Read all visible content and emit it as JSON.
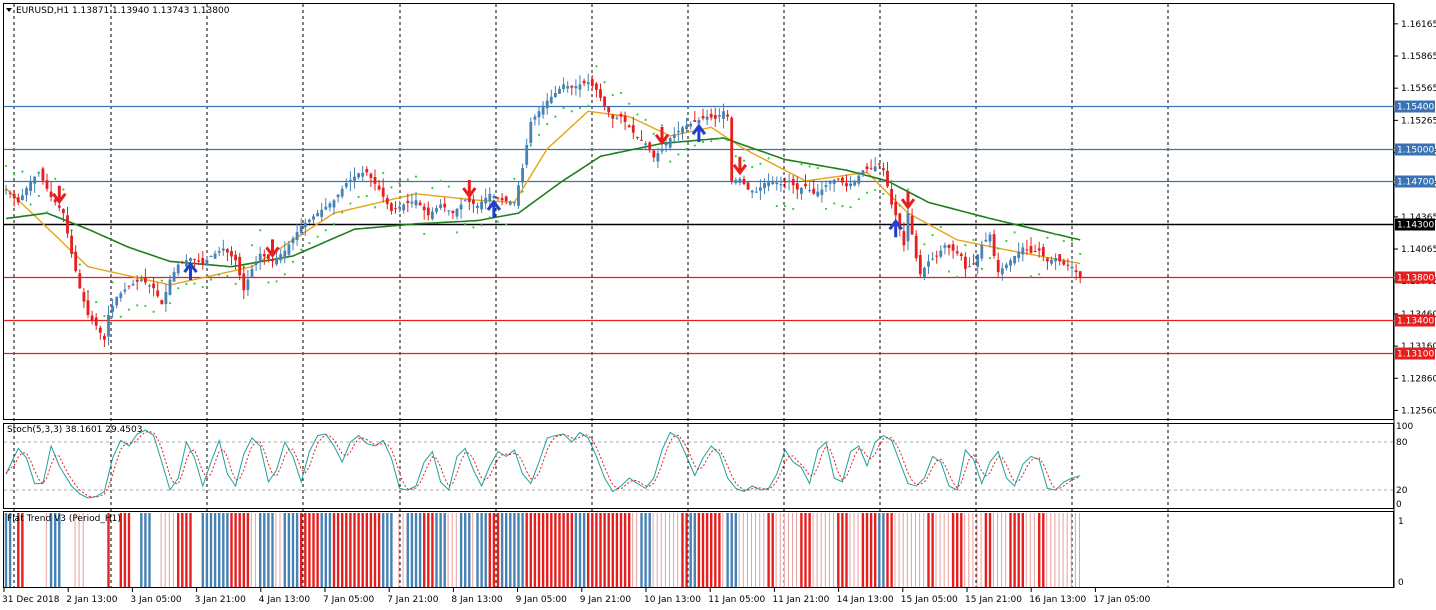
{
  "main": {
    "header": "EURUSD,H1  1.13871 1.13940 1.13743 1.13800",
    "price_ticks": [
      "1.16165",
      "1.15865",
      "1.15565",
      "1.15265",
      "1.14965",
      "1.14665",
      "1.14365",
      "1.14065",
      "1.13765",
      "1.13460",
      "1.13160",
      "1.12860",
      "1.12560"
    ],
    "levels": [
      {
        "value": 1.154,
        "label": "1.15400",
        "color": "#3a73b5"
      },
      {
        "value": 1.15,
        "label": "1.15000",
        "color": "#3a73b5"
      },
      {
        "value": 1.147,
        "label": "1.14700",
        "color": "#3a73b5"
      },
      {
        "value": 1.143,
        "label": "1.14300",
        "color": "#000000"
      },
      {
        "value": 1.138,
        "label": "1.13800",
        "color": "#e61e1e"
      },
      {
        "value": 1.134,
        "label": "1.13400",
        "color": "#e61e1e"
      },
      {
        "value": 1.131,
        "label": "1.13100",
        "color": "#e61e1e"
      }
    ]
  },
  "stoch": {
    "header": "Stoch(5,3,3) 38.1601 29.4503",
    "ticks": [
      "100",
      "80",
      "20",
      "0"
    ]
  },
  "trend": {
    "header": "Flat Trend V3 (Period_H1)",
    "ticks": [
      "1",
      "0"
    ]
  },
  "time_labels": [
    "31 Dec 2018",
    "2 Jan 13:00",
    "3 Jan 05:00",
    "3 Jan 21:00",
    "4 Jan 13:00",
    "7 Jan 05:00",
    "7 Jan 21:00",
    "8 Jan 13:00",
    "9 Jan 05:00",
    "9 Jan 21:00",
    "10 Jan 13:00",
    "11 Jan 05:00",
    "11 Jan 21:00",
    "14 Jan 13:00",
    "15 Jan 05:00",
    "15 Jan 21:00",
    "16 Jan 13:00",
    "17 Jan 05:00"
  ],
  "colors": {
    "bull": "#4682b4",
    "bear": "#e61e1e",
    "ma_fast": "#e8a317",
    "ma_slow": "#1e7d1e",
    "sar": "#33cc33",
    "stoch_main": "#20a0a0",
    "stoch_signal": "#e61e1e"
  },
  "chart_data": {
    "type": "candlestick",
    "title": "EURUSD,H1",
    "ylim": [
      1.1248,
      1.1635
    ],
    "close_path": [
      [
        0,
        1.1462
      ],
      [
        3,
        1.145
      ],
      [
        6,
        1.147
      ],
      [
        8,
        1.1478
      ],
      [
        11,
        1.1455
      ],
      [
        14,
        1.144
      ],
      [
        16,
        1.1402
      ],
      [
        18,
        1.137
      ],
      [
        20,
        1.1345
      ],
      [
        22,
        1.1335
      ],
      [
        24,
        1.1322
      ],
      [
        25,
        1.1345
      ],
      [
        27,
        1.1362
      ],
      [
        30,
        1.1372
      ],
      [
        33,
        1.1378
      ],
      [
        36,
        1.137
      ],
      [
        38,
        1.1355
      ],
      [
        40,
        1.1378
      ],
      [
        42,
        1.1392
      ],
      [
        45,
        1.1398
      ],
      [
        48,
        1.1393
      ],
      [
        50,
        1.14
      ],
      [
        53,
        1.1407
      ],
      [
        56,
        1.1396
      ],
      [
        58,
        1.1368
      ],
      [
        60,
        1.1388
      ],
      [
        62,
        1.1402
      ],
      [
        65,
        1.1395
      ],
      [
        68,
        1.1405
      ],
      [
        72,
        1.1428
      ],
      [
        76,
        1.144
      ],
      [
        80,
        1.1452
      ],
      [
        83,
        1.1468
      ],
      [
        86,
        1.1477
      ],
      [
        88,
        1.1478
      ],
      [
        91,
        1.1462
      ],
      [
        94,
        1.1442
      ],
      [
        97,
        1.1448
      ],
      [
        100,
        1.1452
      ],
      [
        103,
        1.1438
      ],
      [
        106,
        1.1448
      ],
      [
        109,
        1.144
      ],
      [
        112,
        1.1452
      ],
      [
        115,
        1.1447
      ],
      [
        118,
        1.1458
      ],
      [
        121,
        1.1452
      ],
      [
        124,
        1.145
      ],
      [
        126,
        1.1482
      ],
      [
        128,
        1.1525
      ],
      [
        130,
        1.1535
      ],
      [
        132,
        1.1545
      ],
      [
        134,
        1.1552
      ],
      [
        136,
        1.156
      ],
      [
        138,
        1.1557
      ],
      [
        140,
        1.156
      ],
      [
        142,
        1.1562
      ],
      [
        144,
        1.1555
      ],
      [
        146,
        1.154
      ],
      [
        148,
        1.1528
      ],
      [
        150,
        1.153
      ],
      [
        152,
        1.152
      ],
      [
        154,
        1.151
      ],
      [
        156,
        1.1505
      ],
      [
        158,
        1.1492
      ],
      [
        160,
        1.15
      ],
      [
        162,
        1.151
      ],
      [
        165,
        1.152
      ],
      [
        168,
        1.1525
      ],
      [
        171,
        1.153
      ],
      [
        173,
        1.1528
      ],
      [
        175,
        1.1535
      ],
      [
        176,
        1.153
      ],
      [
        177,
        1.147
      ],
      [
        179,
        1.1472
      ],
      [
        181,
        1.1462
      ],
      [
        183,
        1.146
      ],
      [
        185,
        1.1468
      ],
      [
        187,
        1.147
      ],
      [
        189,
        1.1467
      ],
      [
        191,
        1.147
      ],
      [
        193,
        1.1462
      ],
      [
        195,
        1.1465
      ],
      [
        197,
        1.1458
      ],
      [
        199,
        1.1462
      ],
      [
        201,
        1.147
      ],
      [
        203,
        1.1472
      ],
      [
        205,
        1.1465
      ],
      [
        207,
        1.147
      ],
      [
        209,
        1.148
      ],
      [
        211,
        1.1482
      ],
      [
        213,
        1.1485
      ],
      [
        214,
        1.148
      ],
      [
        215,
        1.1465
      ],
      [
        216,
        1.1448
      ],
      [
        217,
        1.1438
      ],
      [
        218,
        1.1425
      ],
      [
        219,
        1.141
      ],
      [
        220,
        1.144
      ],
      [
        221,
        1.142
      ],
      [
        222,
        1.1398
      ],
      [
        223,
        1.1383
      ],
      [
        225,
        1.1395
      ],
      [
        227,
        1.14
      ],
      [
        229,
        1.141
      ],
      [
        231,
        1.1405
      ],
      [
        233,
        1.14
      ],
      [
        234,
        1.1388
      ],
      [
        236,
        1.1393
      ],
      [
        238,
        1.141
      ],
      [
        240,
        1.142
      ],
      [
        241,
        1.14
      ],
      [
        242,
        1.1385
      ],
      [
        244,
        1.1392
      ],
      [
        246,
        1.14
      ],
      [
        248,
        1.1408
      ],
      [
        250,
        1.1403
      ],
      [
        252,
        1.1405
      ],
      [
        254,
        1.1395
      ],
      [
        256,
        1.1398
      ],
      [
        258,
        1.1392
      ],
      [
        260,
        1.139
      ],
      [
        261,
        1.1385
      ],
      [
        262,
        1.138
      ]
    ],
    "ma_fast": [
      [
        0,
        1.1463
      ],
      [
        20,
        1.139
      ],
      [
        40,
        1.1373
      ],
      [
        60,
        1.139
      ],
      [
        80,
        1.144
      ],
      [
        100,
        1.1458
      ],
      [
        115,
        1.1452
      ],
      [
        124,
        1.145
      ],
      [
        132,
        1.15
      ],
      [
        142,
        1.1535
      ],
      [
        152,
        1.153
      ],
      [
        162,
        1.1512
      ],
      [
        172,
        1.152
      ],
      [
        180,
        1.15
      ],
      [
        195,
        1.147
      ],
      [
        210,
        1.1478
      ],
      [
        220,
        1.144
      ],
      [
        232,
        1.1415
      ],
      [
        245,
        1.1405
      ],
      [
        262,
        1.1393
      ]
    ],
    "ma_slow": [
      [
        0,
        1.1435
      ],
      [
        10,
        1.144
      ],
      [
        20,
        1.1425
      ],
      [
        30,
        1.1408
      ],
      [
        40,
        1.1395
      ],
      [
        55,
        1.139
      ],
      [
        70,
        1.14
      ],
      [
        85,
        1.1425
      ],
      [
        100,
        1.143
      ],
      [
        115,
        1.1433
      ],
      [
        125,
        1.144
      ],
      [
        135,
        1.1468
      ],
      [
        145,
        1.1493
      ],
      [
        160,
        1.1505
      ],
      [
        175,
        1.151
      ],
      [
        190,
        1.149
      ],
      [
        205,
        1.148
      ],
      [
        215,
        1.147
      ],
      [
        225,
        1.145
      ],
      [
        240,
        1.1435
      ],
      [
        262,
        1.1415
      ]
    ],
    "signals": [
      {
        "i": 13,
        "dir": "sell"
      },
      {
        "i": 45,
        "dir": "buy"
      },
      {
        "i": 65,
        "dir": "sell"
      },
      {
        "i": 113,
        "dir": "sell"
      },
      {
        "i": 119,
        "dir": "buy"
      },
      {
        "i": 160,
        "dir": "sell"
      },
      {
        "i": 169,
        "dir": "buy"
      },
      {
        "i": 179,
        "dir": "sell"
      },
      {
        "i": 217,
        "dir": "buy"
      },
      {
        "i": 220,
        "dir": "sell"
      }
    ],
    "stoch_main": [
      [
        0,
        40
      ],
      [
        3,
        72
      ],
      [
        5,
        60
      ],
      [
        7,
        28
      ],
      [
        9,
        28
      ],
      [
        11,
        75
      ],
      [
        13,
        50
      ],
      [
        16,
        25
      ],
      [
        18,
        15
      ],
      [
        20,
        10
      ],
      [
        22,
        12
      ],
      [
        24,
        18
      ],
      [
        26,
        60
      ],
      [
        28,
        82
      ],
      [
        30,
        75
      ],
      [
        32,
        90
      ],
      [
        34,
        95
      ],
      [
        36,
        88
      ],
      [
        38,
        55
      ],
      [
        40,
        20
      ],
      [
        42,
        35
      ],
      [
        44,
        80
      ],
      [
        46,
        60
      ],
      [
        48,
        25
      ],
      [
        50,
        55
      ],
      [
        52,
        82
      ],
      [
        54,
        40
      ],
      [
        56,
        25
      ],
      [
        58,
        65
      ],
      [
        60,
        85
      ],
      [
        62,
        75
      ],
      [
        64,
        30
      ],
      [
        66,
        45
      ],
      [
        68,
        80
      ],
      [
        70,
        62
      ],
      [
        72,
        30
      ],
      [
        74,
        68
      ],
      [
        76,
        88
      ],
      [
        78,
        90
      ],
      [
        80,
        75
      ],
      [
        82,
        55
      ],
      [
        84,
        80
      ],
      [
        86,
        88
      ],
      [
        88,
        78
      ],
      [
        90,
        75
      ],
      [
        92,
        82
      ],
      [
        94,
        60
      ],
      [
        96,
        22
      ],
      [
        98,
        20
      ],
      [
        100,
        25
      ],
      [
        102,
        55
      ],
      [
        104,
        68
      ],
      [
        106,
        30
      ],
      [
        108,
        20
      ],
      [
        110,
        62
      ],
      [
        112,
        72
      ],
      [
        114,
        45
      ],
      [
        116,
        25
      ],
      [
        118,
        50
      ],
      [
        120,
        68
      ],
      [
        122,
        62
      ],
      [
        124,
        70
      ],
      [
        126,
        40
      ],
      [
        128,
        28
      ],
      [
        130,
        55
      ],
      [
        132,
        85
      ],
      [
        134,
        88
      ],
      [
        136,
        90
      ],
      [
        138,
        80
      ],
      [
        140,
        92
      ],
      [
        142,
        85
      ],
      [
        144,
        62
      ],
      [
        146,
        35
      ],
      [
        148,
        18
      ],
      [
        150,
        25
      ],
      [
        152,
        35
      ],
      [
        154,
        28
      ],
      [
        156,
        22
      ],
      [
        158,
        35
      ],
      [
        160,
        70
      ],
      [
        162,
        92
      ],
      [
        164,
        85
      ],
      [
        166,
        62
      ],
      [
        168,
        38
      ],
      [
        170,
        60
      ],
      [
        172,
        75
      ],
      [
        174,
        65
      ],
      [
        176,
        35
      ],
      [
        178,
        22
      ],
      [
        180,
        18
      ],
      [
        182,
        25
      ],
      [
        184,
        20
      ],
      [
        186,
        22
      ],
      [
        188,
        40
      ],
      [
        190,
        70
      ],
      [
        192,
        55
      ],
      [
        194,
        48
      ],
      [
        196,
        28
      ],
      [
        198,
        70
      ],
      [
        200,
        80
      ],
      [
        202,
        35
      ],
      [
        204,
        30
      ],
      [
        206,
        68
      ],
      [
        208,
        75
      ],
      [
        210,
        50
      ],
      [
        212,
        80
      ],
      [
        214,
        88
      ],
      [
        216,
        82
      ],
      [
        218,
        55
      ],
      [
        220,
        28
      ],
      [
        222,
        25
      ],
      [
        224,
        35
      ],
      [
        226,
        62
      ],
      [
        228,
        55
      ],
      [
        230,
        25
      ],
      [
        232,
        20
      ],
      [
        234,
        70
      ],
      [
        236,
        58
      ],
      [
        238,
        28
      ],
      [
        240,
        55
      ],
      [
        242,
        68
      ],
      [
        244,
        35
      ],
      [
        246,
        25
      ],
      [
        248,
        52
      ],
      [
        250,
        62
      ],
      [
        252,
        58
      ],
      [
        254,
        22
      ],
      [
        256,
        20
      ],
      [
        258,
        30
      ],
      [
        260,
        35
      ],
      [
        262,
        38
      ]
    ],
    "trend_bars": [
      [
        0,
        0,
        2
      ],
      [
        3,
        1,
        2
      ],
      [
        10,
        2,
        3
      ],
      [
        11,
        0,
        3
      ],
      [
        17,
        2,
        3
      ],
      [
        25,
        1,
        1
      ],
      [
        28,
        1,
        3
      ],
      [
        33,
        0,
        3
      ],
      [
        38,
        2,
        4
      ],
      [
        42,
        1,
        4
      ],
      [
        48,
        0,
        7
      ],
      [
        55,
        1,
        5
      ],
      [
        60,
        2,
        2
      ],
      [
        62,
        0,
        4
      ],
      [
        66,
        2,
        2
      ],
      [
        68,
        0,
        4
      ],
      [
        72,
        1,
        5
      ],
      [
        77,
        0,
        3
      ],
      [
        80,
        1,
        12
      ],
      [
        92,
        0,
        3
      ],
      [
        96,
        2,
        2
      ],
      [
        98,
        0,
        4
      ],
      [
        102,
        1,
        3
      ],
      [
        105,
        0,
        3
      ],
      [
        108,
        2,
        3
      ],
      [
        111,
        0,
        3
      ],
      [
        114,
        2,
        1
      ],
      [
        115,
        0,
        3
      ],
      [
        118,
        1,
        3
      ],
      [
        121,
        0,
        6
      ],
      [
        127,
        1,
        12
      ],
      [
        139,
        0,
        3
      ],
      [
        142,
        1,
        8
      ],
      [
        150,
        1,
        3
      ],
      [
        153,
        2,
        2
      ],
      [
        155,
        0,
        3
      ],
      [
        158,
        2,
        7
      ],
      [
        165,
        1,
        2
      ],
      [
        167,
        0,
        2
      ],
      [
        169,
        1,
        6
      ],
      [
        175,
        2,
        1
      ],
      [
        176,
        0,
        3
      ],
      [
        179,
        2,
        7
      ],
      [
        186,
        1,
        2
      ],
      [
        188,
        2,
        6
      ],
      [
        194,
        1,
        3
      ],
      [
        197,
        2,
        6
      ],
      [
        203,
        1,
        3
      ],
      [
        206,
        2,
        3
      ],
      [
        209,
        1,
        4
      ],
      [
        213,
        0,
        2
      ],
      [
        215,
        1,
        2
      ],
      [
        217,
        2,
        8
      ],
      [
        225,
        1,
        2
      ],
      [
        227,
        2,
        4
      ],
      [
        231,
        1,
        3
      ],
      [
        234,
        2,
        5
      ],
      [
        239,
        1,
        2
      ],
      [
        241,
        2,
        4
      ],
      [
        245,
        1,
        4
      ],
      [
        249,
        2,
        3
      ],
      [
        252,
        1,
        2
      ],
      [
        254,
        2,
        9
      ]
    ]
  }
}
